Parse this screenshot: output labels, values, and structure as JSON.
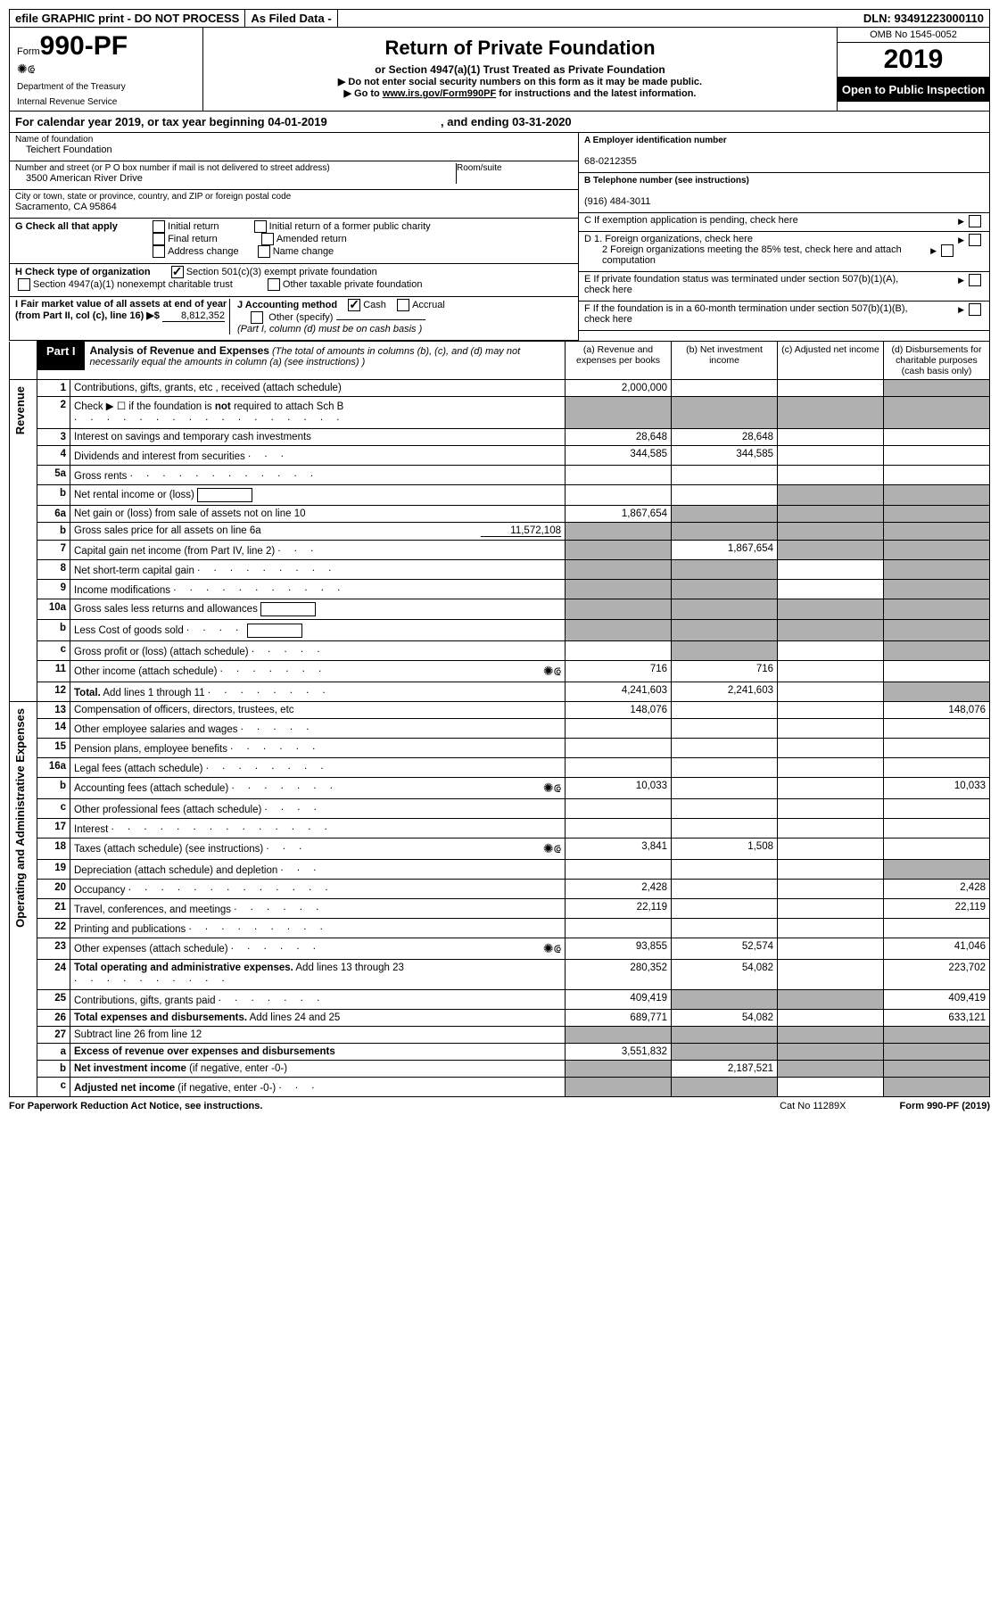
{
  "topbar": {
    "efile": "efile GRAPHIC print - DO NOT PROCESS",
    "asfiled": "As Filed Data -",
    "dln_label": "DLN:",
    "dln": "93491223000110"
  },
  "header": {
    "form_prefix": "Form",
    "form_number": "990-PF",
    "dept1": "Department of the Treasury",
    "dept2": "Internal Revenue Service",
    "title": "Return of Private Foundation",
    "subtitle": "or Section 4947(a)(1) Trust Treated as Private Foundation",
    "instr1": "▶ Do not enter social security numbers on this form as it may be made public.",
    "instr2_a": "▶ Go to ",
    "instr2_link": "www.irs.gov/Form990PF",
    "instr2_b": " for instructions and the latest information.",
    "omb": "OMB No  1545-0052",
    "year": "2019",
    "open": "Open to Public Inspection"
  },
  "calendar": {
    "line_a": "For calendar year 2019, or tax year beginning ",
    "begin": "04-01-2019",
    "mid": " , and ending ",
    "end": "03-31-2020"
  },
  "meta": {
    "name_label": "Name of foundation",
    "name": "Teichert Foundation",
    "addr_label": "Number and street (or P O  box number if mail is not delivered to street address)",
    "room_label": "Room/suite",
    "addr": "3500 American River Drive",
    "city_label": "City or town, state or province, country, and ZIP or foreign postal code",
    "city": "Sacramento, CA  95864",
    "g_label": "G Check all that apply",
    "g_opts": [
      "Initial return",
      "Initial return of a former public charity",
      "Final return",
      "Amended return",
      "Address change",
      "Name change"
    ],
    "h_label": "H Check type of organization",
    "h_501": "Section 501(c)(3) exempt private foundation",
    "h_4947": "Section 4947(a)(1) nonexempt charitable trust",
    "h_other": "Other taxable private foundation",
    "i_label": "I Fair market value of all assets at end of year (from Part II, col  (c), line 16) ▶$",
    "i_value": "8,812,352",
    "j_label": "J Accounting method",
    "j_cash": "Cash",
    "j_accrual": "Accrual",
    "j_other": "Other (specify)",
    "j_note": "(Part I, column (d) must be on cash basis )",
    "a_label": "A Employer identification number",
    "a_value": "68-0212355",
    "b_label": "B Telephone number (see instructions)",
    "b_value": "(916) 484-3011",
    "c_label": "C If exemption application is pending, check here",
    "d1_label": "D 1. Foreign organizations, check here",
    "d2_label": "2  Foreign organizations meeting the 85% test, check here and attach computation",
    "e_label": "E  If private foundation status was terminated under section 507(b)(1)(A), check here",
    "f_label": "F  If the foundation is in a 60-month termination under section 507(b)(1)(B), check here"
  },
  "part1": {
    "label": "Part I",
    "title": "Analysis of Revenue and Expenses",
    "title_note": " (The total of amounts in columns (b), (c), and (d) may not necessarily equal the amounts in column (a) (see instructions) )",
    "cols": {
      "a": "(a)   Revenue and expenses per books",
      "b": "(b)   Net investment income",
      "c": "(c)   Adjusted net income",
      "d": "(d)   Disbursements for charitable purposes (cash basis only)"
    }
  },
  "side": {
    "rev": "Revenue",
    "exp": "Operating and Administrative Expenses"
  },
  "rows": [
    {
      "n": "1",
      "desc": "Contributions, gifts, grants, etc , received (attach schedule)",
      "a": "2,000,000",
      "d_shade": true
    },
    {
      "n": "2",
      "desc": "Check ▶ ☐ if the foundation is <b>not</b> required to attach Sch  B",
      "dots": ". . . . . . . . . . . . . . . . .",
      "all_shade": true
    },
    {
      "n": "3",
      "desc": "Interest on savings and temporary cash investments",
      "a": "28,648",
      "b": "28,648"
    },
    {
      "n": "4",
      "desc": "Dividends and interest from securities",
      "dots": ".  .  .",
      "a": "344,585",
      "b": "344,585"
    },
    {
      "n": "5a",
      "desc": "Gross rents",
      "dots": ".  .  .  .  .  .  .  .  .  .  .  ."
    },
    {
      "n": "b",
      "desc": "Net rental income or (loss)",
      "inline_box": true,
      "cd_shade": true
    },
    {
      "n": "6a",
      "desc": "Net gain or (loss) from sale of assets not on line 10",
      "a": "1,867,654",
      "bcd_shade": true
    },
    {
      "n": "b",
      "desc": "Gross sales price for all assets on line 6a",
      "inline_val": "11,572,108",
      "all_shade": true
    },
    {
      "n": "7",
      "desc": "Capital gain net income (from Part IV, line 2)",
      "dots": ".  .  .",
      "b": "1,867,654",
      "a_shade": true,
      "cd_shade": true
    },
    {
      "n": "8",
      "desc": "Net short-term capital gain",
      "dots": ".  .  .  .  .  .  .  .  .",
      "abd_shade": true
    },
    {
      "n": "9",
      "desc": "Income modifications",
      "dots": ".  .  .  .  .  .  .  .  .  .  .",
      "abd_shade": true
    },
    {
      "n": "10a",
      "desc": "Gross sales less returns and allowances",
      "inline_box": true,
      "all_shade": true
    },
    {
      "n": "b",
      "desc": "Less  Cost of goods sold",
      "dots": ".  .  .  .",
      "inline_box": true,
      "all_shade": true
    },
    {
      "n": "c",
      "desc": "Gross profit or (loss) (attach schedule)",
      "dots": ".  .  .  .  .",
      "bd_shade": true
    },
    {
      "n": "11",
      "desc": "Other income (attach schedule)",
      "dots": ".  .  .  .  .  .  .",
      "icon": true,
      "a": "716",
      "b": "716"
    },
    {
      "n": "12",
      "desc": "<b>Total.</b> Add lines 1 through 11",
      "dots": ".  .  .  .  .  .  .  .",
      "a": "4,241,603",
      "b": "2,241,603",
      "d_shade": true
    },
    {
      "n": "13",
      "desc": "Compensation of officers, directors, trustees, etc",
      "a": "148,076",
      "d": "148,076"
    },
    {
      "n": "14",
      "desc": "Other employee salaries and wages",
      "dots": ".  .  .  .  ."
    },
    {
      "n": "15",
      "desc": "Pension plans, employee benefits",
      "dots": ".  .  .  .  .  ."
    },
    {
      "n": "16a",
      "desc": "Legal fees (attach schedule)",
      "dots": ".  .  .  .  .  .  .  ."
    },
    {
      "n": "b",
      "desc": "Accounting fees (attach schedule)",
      "dots": ".  .  .  .  .  .  .",
      "icon": true,
      "a": "10,033",
      "d": "10,033"
    },
    {
      "n": "c",
      "desc": "Other professional fees (attach schedule)",
      "dots": ".  .  .  ."
    },
    {
      "n": "17",
      "desc": "Interest",
      "dots": ".  .  .  .  .  .  .  .  .  .  .  .  .  ."
    },
    {
      "n": "18",
      "desc": "Taxes (attach schedule) (see instructions)",
      "dots": ".  .  .",
      "icon": true,
      "a": "3,841",
      "b": "1,508"
    },
    {
      "n": "19",
      "desc": "Depreciation (attach schedule) and depletion",
      "dots": ".  .  .",
      "d_shade": true
    },
    {
      "n": "20",
      "desc": "Occupancy",
      "dots": ".  .  .  .  .  .  .  .  .  .  .  .  .",
      "a": "2,428",
      "d": "2,428"
    },
    {
      "n": "21",
      "desc": "Travel, conferences, and meetings",
      "dots": ".  .  .  .  .  .",
      "a": "22,119",
      "d": "22,119"
    },
    {
      "n": "22",
      "desc": "Printing and publications",
      "dots": ".  .  .  .  .  .  .  .  ."
    },
    {
      "n": "23",
      "desc": "Other expenses (attach schedule)",
      "dots": ".  .  .  .  .  .",
      "icon": true,
      "a": "93,855",
      "b": "52,574",
      "d": "41,046"
    },
    {
      "n": "24",
      "desc": "<b>Total operating and administrative expenses.</b> Add lines 13 through 23",
      "dots": ".  .  .  .  .  .  .  .  .  .",
      "a": "280,352",
      "b": "54,082",
      "d": "223,702"
    },
    {
      "n": "25",
      "desc": "Contributions, gifts, grants paid",
      "dots": ".  .  .  .  .  .  .",
      "a": "409,419",
      "d": "409,419",
      "bc_shade": true
    },
    {
      "n": "26",
      "desc": "<b>Total expenses and disbursements.</b> Add lines 24 and 25",
      "a": "689,771",
      "b": "54,082",
      "d": "633,121"
    },
    {
      "n": "27",
      "desc": "Subtract line 26 from line 12",
      "all_shade": true
    },
    {
      "n": "a",
      "desc": "<b>Excess of revenue over expenses and disbursements</b>",
      "a": "3,551,832",
      "bcd_shade": true
    },
    {
      "n": "b",
      "desc": "<b>Net investment income</b> (if negative, enter -0-)",
      "b": "2,187,521",
      "a_shade": true,
      "cd_shade": true
    },
    {
      "n": "c",
      "desc": "<b>Adjusted net income</b> (if negative, enter -0-)",
      "dots": ".  .  .",
      "abd_shade": true
    }
  ],
  "footer": {
    "left": "For Paperwork Reduction Act Notice, see instructions.",
    "mid": "Cat  No  11289X",
    "right": "Form 990-PF (2019)"
  }
}
